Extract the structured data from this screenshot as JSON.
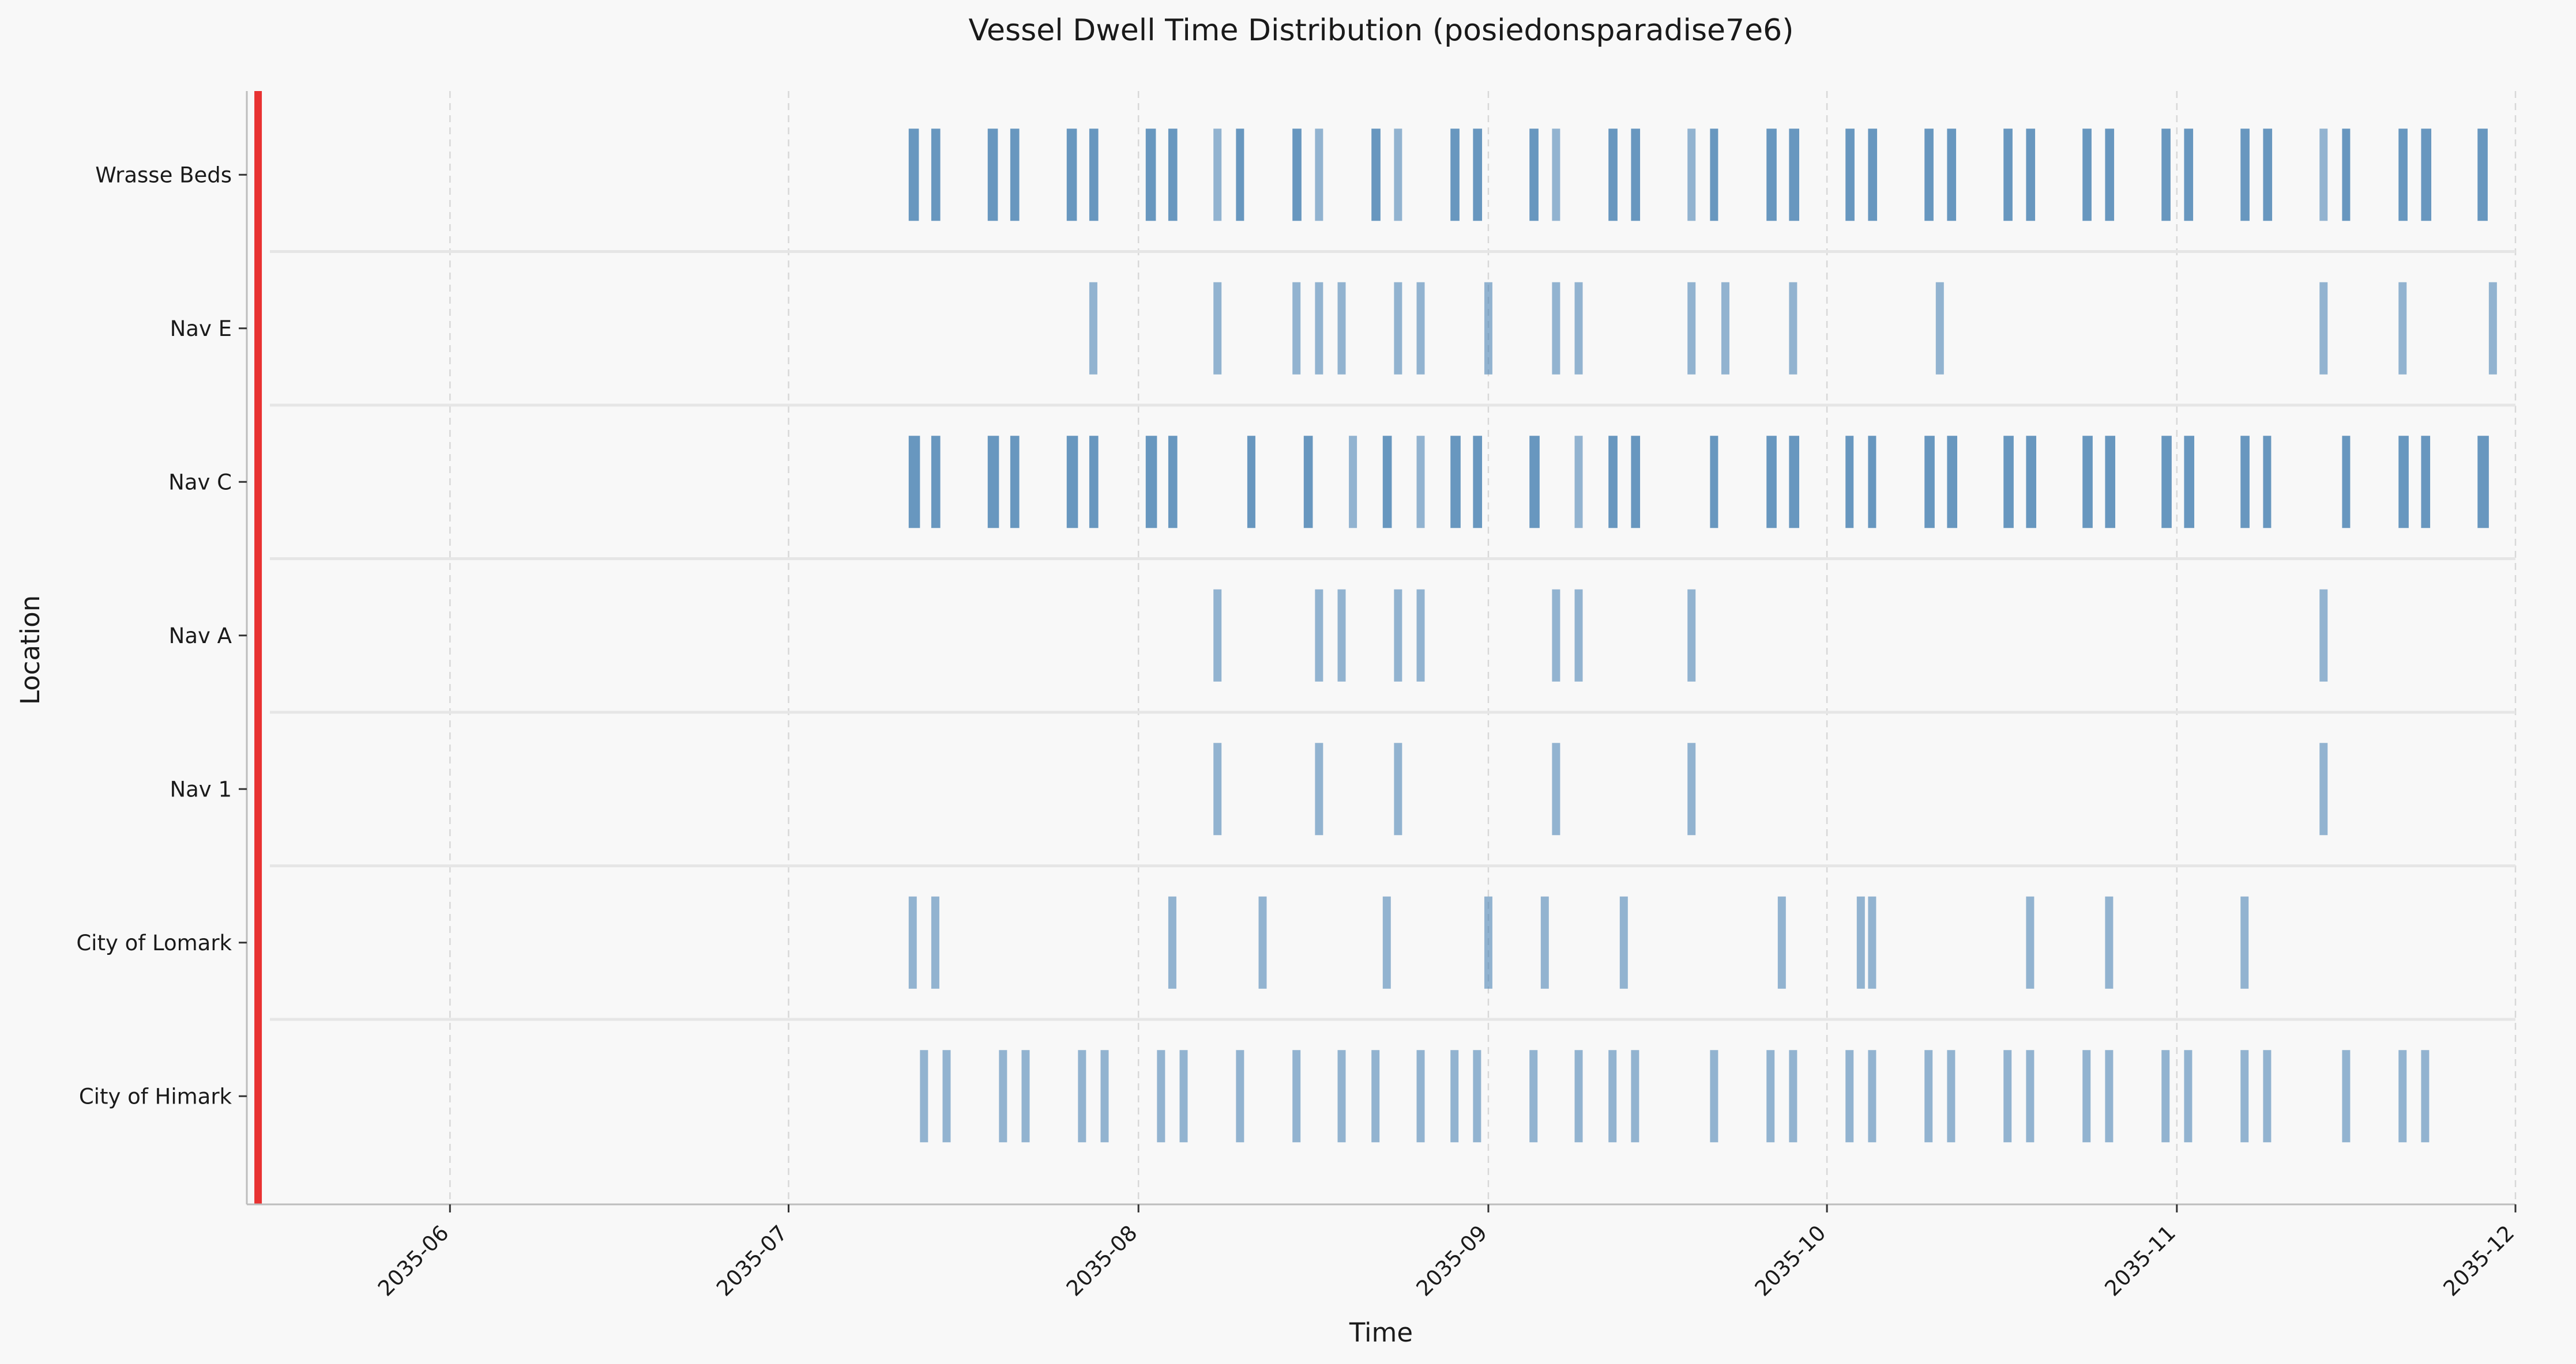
{
  "chart_data": {
    "type": "timeline",
    "title": "Vessel Dwell Time Distribution (posiedonsparadise7e6)",
    "xlabel": "Time",
    "ylabel": "Location",
    "xlim": [
      "2035-05-14",
      "2035-12-01"
    ],
    "x_ticks": [
      "2035-06",
      "2035-07",
      "2035-08",
      "2035-09",
      "2035-10",
      "2035-11",
      "2035-12"
    ],
    "grid": "vertical dashed",
    "bar_color": "#4f86b5",
    "marker": {
      "date": "2035-05-15",
      "color": "#e83232"
    },
    "separator_color": "#e6e6e6",
    "series": [
      {
        "name": "City of Himark",
        "events": [
          [
            "2035-07-13",
            0.1
          ],
          [
            "2035-07-15",
            0.1
          ],
          [
            "2035-07-20",
            0.1
          ],
          [
            "2035-07-22",
            0.1
          ],
          [
            "2035-07-27",
            0.1
          ],
          [
            "2035-07-29",
            0.1
          ],
          [
            "2035-08-03",
            0.1
          ],
          [
            "2035-08-05",
            0.1
          ],
          [
            "2035-08-10",
            0.1
          ],
          [
            "2035-08-15",
            0.1
          ],
          [
            "2035-08-19",
            0.1
          ],
          [
            "2035-08-22",
            0.1
          ],
          [
            "2035-08-26",
            0.1
          ],
          [
            "2035-08-29",
            0.1
          ],
          [
            "2035-08-31",
            0.1
          ],
          [
            "2035-09-05",
            0.1
          ],
          [
            "2035-09-09",
            0.1
          ],
          [
            "2035-09-12",
            0.1
          ],
          [
            "2035-09-14",
            0.1
          ],
          [
            "2035-09-21",
            0.1
          ],
          [
            "2035-09-26",
            0.1
          ],
          [
            "2035-09-28",
            0.1
          ],
          [
            "2035-10-03",
            0.1
          ],
          [
            "2035-10-05",
            0.1
          ],
          [
            "2035-10-10",
            0.1
          ],
          [
            "2035-10-12",
            0.1
          ],
          [
            "2035-10-17",
            0.1
          ],
          [
            "2035-10-19",
            0.1
          ],
          [
            "2035-10-24",
            0.1
          ],
          [
            "2035-10-26",
            0.1
          ],
          [
            "2035-10-31",
            0.1
          ],
          [
            "2035-11-02",
            0.1
          ],
          [
            "2035-11-07",
            0.1
          ],
          [
            "2035-11-09",
            0.1
          ],
          [
            "2035-11-16",
            0.1
          ],
          [
            "2035-11-21",
            0.1
          ],
          [
            "2035-11-23",
            0.1
          ]
        ]
      },
      {
        "name": "City of Lomark",
        "events": [
          [
            "2035-07-12",
            0.1
          ],
          [
            "2035-07-14",
            0.1
          ],
          [
            "2035-08-04",
            0.1
          ],
          [
            "2035-08-12",
            0.1
          ],
          [
            "2035-08-23",
            0.1
          ],
          [
            "2035-09-01",
            0.1
          ],
          [
            "2035-09-06",
            0.1
          ],
          [
            "2035-09-13",
            0.1
          ],
          [
            "2035-09-27",
            0.1
          ],
          [
            "2035-10-04",
            0.1
          ],
          [
            "2035-10-05",
            0.1
          ],
          [
            "2035-10-19",
            0.1
          ],
          [
            "2035-10-26",
            0.1
          ],
          [
            "2035-11-07",
            0.1
          ]
        ]
      },
      {
        "name": "Nav 1",
        "events": [
          [
            "2035-08-08",
            0.1
          ],
          [
            "2035-08-17",
            0.1
          ],
          [
            "2035-08-24",
            0.1
          ],
          [
            "2035-09-07",
            0.1
          ],
          [
            "2035-09-19",
            0.1
          ],
          [
            "2035-11-14",
            0.1
          ]
        ]
      },
      {
        "name": "Nav A",
        "events": [
          [
            "2035-08-08",
            0.1
          ],
          [
            "2035-08-17",
            0.1
          ],
          [
            "2035-08-19",
            0.1
          ],
          [
            "2035-08-24",
            0.1
          ],
          [
            "2035-08-26",
            0.1
          ],
          [
            "2035-09-07",
            0.1
          ],
          [
            "2035-09-09",
            0.1
          ],
          [
            "2035-09-19",
            0.1
          ],
          [
            "2035-11-14",
            0.1
          ]
        ]
      },
      {
        "name": "Nav C",
        "events": [
          [
            "2035-07-12",
            1.0
          ],
          [
            "2035-07-14",
            0.8
          ],
          [
            "2035-07-19",
            1.0
          ],
          [
            "2035-07-21",
            0.8
          ],
          [
            "2035-07-26",
            1.0
          ],
          [
            "2035-07-28",
            0.8
          ],
          [
            "2035-08-02",
            1.0
          ],
          [
            "2035-08-04",
            0.8
          ],
          [
            "2035-08-11",
            0.6
          ],
          [
            "2035-08-16",
            0.8
          ],
          [
            "2035-08-20",
            0.1
          ],
          [
            "2035-08-23",
            0.8
          ],
          [
            "2035-08-26",
            0.1
          ],
          [
            "2035-08-29",
            0.9
          ],
          [
            "2035-08-31",
            0.8
          ],
          [
            "2035-09-05",
            0.9
          ],
          [
            "2035-09-09",
            0.1
          ],
          [
            "2035-09-12",
            0.8
          ],
          [
            "2035-09-14",
            0.8
          ],
          [
            "2035-09-21",
            0.7
          ],
          [
            "2035-09-26",
            0.9
          ],
          [
            "2035-09-28",
            0.9
          ],
          [
            "2035-10-03",
            0.7
          ],
          [
            "2035-10-05",
            0.7
          ],
          [
            "2035-10-10",
            0.9
          ],
          [
            "2035-10-12",
            0.9
          ],
          [
            "2035-10-17",
            0.9
          ],
          [
            "2035-10-19",
            0.9
          ],
          [
            "2035-10-24",
            0.9
          ],
          [
            "2035-10-26",
            0.9
          ],
          [
            "2035-10-31",
            0.9
          ],
          [
            "2035-11-02",
            0.9
          ],
          [
            "2035-11-07",
            0.8
          ],
          [
            "2035-11-09",
            0.7
          ],
          [
            "2035-11-16",
            0.7
          ],
          [
            "2035-11-21",
            0.9
          ],
          [
            "2035-11-23",
            0.8
          ],
          [
            "2035-11-28",
            1.0
          ]
        ]
      },
      {
        "name": "Nav E",
        "events": [
          [
            "2035-07-28",
            0.1
          ],
          [
            "2035-08-08",
            0.1
          ],
          [
            "2035-08-15",
            0.1
          ],
          [
            "2035-08-17",
            0.1
          ],
          [
            "2035-08-19",
            0.1
          ],
          [
            "2035-08-24",
            0.1
          ],
          [
            "2035-08-26",
            0.1
          ],
          [
            "2035-09-01",
            0.1
          ],
          [
            "2035-09-07",
            0.1
          ],
          [
            "2035-09-09",
            0.1
          ],
          [
            "2035-09-19",
            0.1
          ],
          [
            "2035-09-22",
            0.1
          ],
          [
            "2035-09-28",
            0.1
          ],
          [
            "2035-10-11",
            0.1
          ],
          [
            "2035-11-14",
            0.1
          ],
          [
            "2035-11-21",
            0.1
          ],
          [
            "2035-11-29",
            0.1
          ]
        ]
      },
      {
        "name": "Wrasse Beds",
        "events": [
          [
            "2035-07-12",
            0.9
          ],
          [
            "2035-07-14",
            0.8
          ],
          [
            "2035-07-19",
            0.9
          ],
          [
            "2035-07-21",
            0.8
          ],
          [
            "2035-07-26",
            0.9
          ],
          [
            "2035-07-28",
            0.8
          ],
          [
            "2035-08-02",
            0.9
          ],
          [
            "2035-08-04",
            0.8
          ],
          [
            "2035-08-08",
            0.1
          ],
          [
            "2035-08-10",
            0.7
          ],
          [
            "2035-08-15",
            0.8
          ],
          [
            "2035-08-17",
            0.1
          ],
          [
            "2035-08-22",
            0.8
          ],
          [
            "2035-08-24",
            0.1
          ],
          [
            "2035-08-29",
            0.8
          ],
          [
            "2035-08-31",
            0.8
          ],
          [
            "2035-09-05",
            0.8
          ],
          [
            "2035-09-07",
            0.1
          ],
          [
            "2035-09-12",
            0.8
          ],
          [
            "2035-09-14",
            0.8
          ],
          [
            "2035-09-19",
            0.1
          ],
          [
            "2035-09-21",
            0.6
          ],
          [
            "2035-09-26",
            0.9
          ],
          [
            "2035-09-28",
            0.9
          ],
          [
            "2035-10-03",
            0.8
          ],
          [
            "2035-10-05",
            0.8
          ],
          [
            "2035-10-10",
            0.8
          ],
          [
            "2035-10-12",
            0.8
          ],
          [
            "2035-10-17",
            0.8
          ],
          [
            "2035-10-19",
            0.8
          ],
          [
            "2035-10-24",
            0.8
          ],
          [
            "2035-10-26",
            0.8
          ],
          [
            "2035-10-31",
            0.8
          ],
          [
            "2035-11-02",
            0.8
          ],
          [
            "2035-11-07",
            0.8
          ],
          [
            "2035-11-09",
            0.8
          ],
          [
            "2035-11-14",
            0.1
          ],
          [
            "2035-11-16",
            0.7
          ],
          [
            "2035-11-21",
            0.8
          ],
          [
            "2035-11-23",
            0.9
          ],
          [
            "2035-11-28",
            0.9
          ]
        ]
      }
    ]
  }
}
